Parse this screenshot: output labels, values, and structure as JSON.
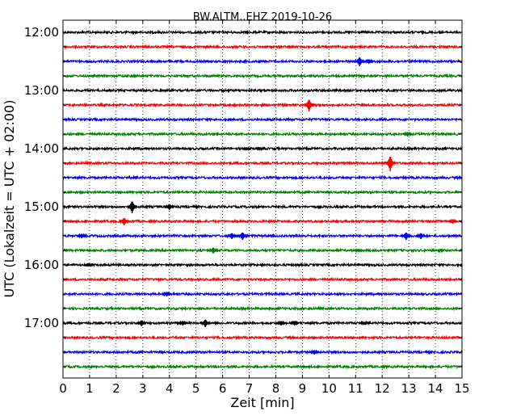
{
  "chart_data": {
    "type": "line",
    "title": "BW.ALTM..EHZ 2019-10-26",
    "xlabel": "Zeit  [min]",
    "ylabel": "UTC (Lokalzeit = UTC + 02:00)",
    "xlim": [
      0,
      15
    ],
    "x_ticks": [
      "0",
      "1",
      "2",
      "3",
      "4",
      "5",
      "6",
      "7",
      "8",
      "9",
      "10",
      "11",
      "12",
      "13",
      "14",
      "15"
    ],
    "y_ticks": [
      "12:00",
      "13:00",
      "14:00",
      "15:00",
      "16:00",
      "17:00"
    ],
    "grid": true,
    "row_colors": [
      "#000000",
      "#ff0000",
      "#0000ff",
      "#008000"
    ],
    "series": [
      {
        "start": "12:00",
        "color": "#000000",
        "events": []
      },
      {
        "start": "12:15",
        "color": "#ff0000",
        "events": []
      },
      {
        "start": "12:30",
        "color": "#0000ff",
        "events": [
          {
            "t": 11.15,
            "amp": 6
          },
          {
            "t": 11.5,
            "amp": 3
          }
        ]
      },
      {
        "start": "12:45",
        "color": "#008000",
        "events": []
      },
      {
        "start": "13:00",
        "color": "#000000",
        "events": []
      },
      {
        "start": "13:15",
        "color": "#ff0000",
        "events": [
          {
            "t": 9.25,
            "amp": 8
          }
        ]
      },
      {
        "start": "13:30",
        "color": "#0000ff",
        "events": []
      },
      {
        "start": "13:45",
        "color": "#008000",
        "events": [
          {
            "t": 12.95,
            "amp": 3
          }
        ]
      },
      {
        "start": "14:00",
        "color": "#000000",
        "events": [
          {
            "t": 6.9,
            "amp": 2
          },
          {
            "t": 7.4,
            "amp": 2
          }
        ]
      },
      {
        "start": "14:15",
        "color": "#ff0000",
        "events": [
          {
            "t": 12.3,
            "amp": 10
          }
        ]
      },
      {
        "start": "14:30",
        "color": "#0000ff",
        "events": []
      },
      {
        "start": "14:45",
        "color": "#008000",
        "events": []
      },
      {
        "start": "15:00",
        "color": "#000000",
        "events": [
          {
            "t": 2.6,
            "amp": 8
          },
          {
            "t": 4.0,
            "amp": 4
          }
        ]
      },
      {
        "start": "15:15",
        "color": "#ff0000",
        "events": [
          {
            "t": 2.3,
            "amp": 5
          },
          {
            "t": 14.65,
            "amp": 3
          }
        ]
      },
      {
        "start": "15:30",
        "color": "#0000ff",
        "events": [
          {
            "t": 0.7,
            "amp": 3
          },
          {
            "t": 6.35,
            "amp": 4
          },
          {
            "t": 6.75,
            "amp": 5
          },
          {
            "t": 12.9,
            "amp": 5
          },
          {
            "t": 13.45,
            "amp": 4
          }
        ]
      },
      {
        "start": "15:45",
        "color": "#008000",
        "events": [
          {
            "t": 5.65,
            "amp": 4
          },
          {
            "t": 11.1,
            "amp": 2
          }
        ]
      },
      {
        "start": "16:00",
        "color": "#000000",
        "events": [
          {
            "t": 1.0,
            "amp": 2
          }
        ]
      },
      {
        "start": "16:15",
        "color": "#ff0000",
        "events": []
      },
      {
        "start": "16:30",
        "color": "#0000ff",
        "events": [
          {
            "t": 3.9,
            "amp": 3
          }
        ]
      },
      {
        "start": "16:45",
        "color": "#008000",
        "events": []
      },
      {
        "start": "17:00",
        "color": "#000000",
        "events": [
          {
            "t": 2.95,
            "amp": 4
          },
          {
            "t": 4.5,
            "amp": 3
          },
          {
            "t": 5.35,
            "amp": 5
          },
          {
            "t": 8.2,
            "amp": 3
          },
          {
            "t": 8.7,
            "amp": 3
          },
          {
            "t": 11.3,
            "amp": 2
          }
        ]
      },
      {
        "start": "17:15",
        "color": "#ff0000",
        "events": []
      },
      {
        "start": "17:30",
        "color": "#0000ff",
        "events": [
          {
            "t": 9.45,
            "amp": 3
          }
        ]
      },
      {
        "start": "17:45",
        "color": "#008000",
        "events": []
      }
    ]
  }
}
